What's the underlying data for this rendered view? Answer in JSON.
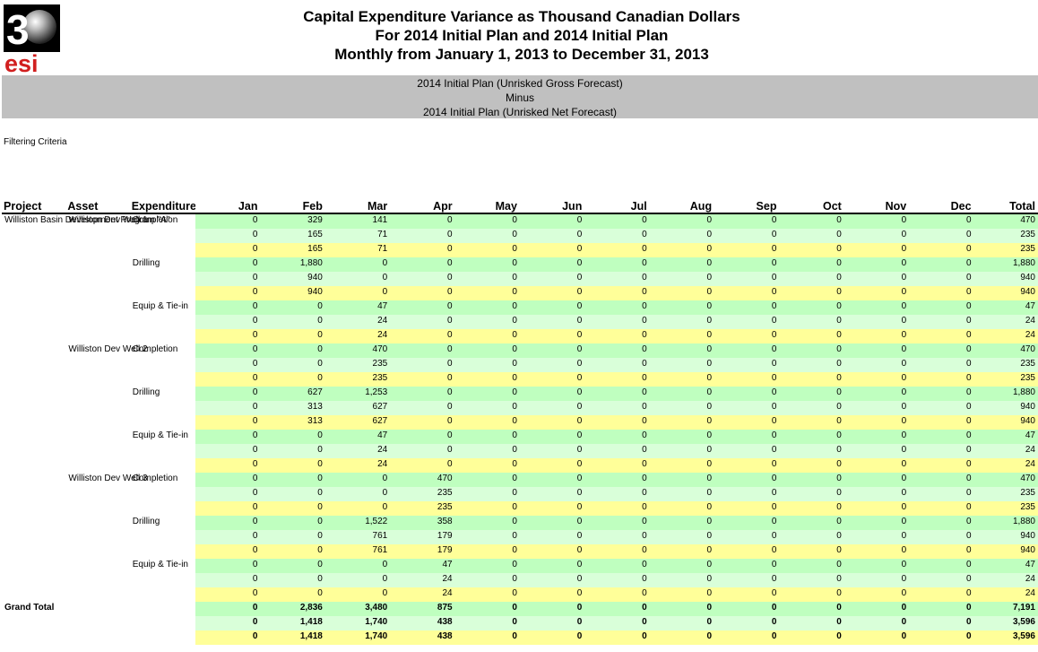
{
  "report": {
    "title_line1": "Capital Expenditure Variance as Thousand Canadian Dollars",
    "title_line2": "For 2014 Initial Plan and 2014 Initial Plan",
    "title_line3": "Monthly from January 1, 2013 to December 31, 2013",
    "banner_line1": "2014 Initial Plan (Unrisked Gross Forecast)",
    "banner_line2": "Minus",
    "banner_line3": "2014 Initial Plan (Unrisked Net Forecast)",
    "filter_label": "Filtering Criteria",
    "logo_text_top": "3",
    "logo_text_bottom": "esi"
  },
  "columns": [
    "Project",
    "Asset",
    "Expenditure",
    "Jan",
    "Feb",
    "Mar",
    "Apr",
    "May",
    "Jun",
    "Jul",
    "Aug",
    "Sep",
    "Oct",
    "Nov",
    "Dec",
    "Total"
  ],
  "rows": [
    {
      "project": "Williston Basin Development Program \"A\"",
      "asset": "Williston Dev Well 1",
      "exp": "Completion",
      "v": [
        "0",
        "329",
        "141",
        "0",
        "0",
        "0",
        "0",
        "0",
        "0",
        "0",
        "0",
        "0",
        "470"
      ]
    },
    {
      "v": [
        "0",
        "165",
        "71",
        "0",
        "0",
        "0",
        "0",
        "0",
        "0",
        "0",
        "0",
        "0",
        "235"
      ]
    },
    {
      "v": [
        "0",
        "165",
        "71",
        "0",
        "0",
        "0",
        "0",
        "0",
        "0",
        "0",
        "0",
        "0",
        "235"
      ]
    },
    {
      "exp": "Drilling",
      "v": [
        "0",
        "1,880",
        "0",
        "0",
        "0",
        "0",
        "0",
        "0",
        "0",
        "0",
        "0",
        "0",
        "1,880"
      ]
    },
    {
      "v": [
        "0",
        "940",
        "0",
        "0",
        "0",
        "0",
        "0",
        "0",
        "0",
        "0",
        "0",
        "0",
        "940"
      ]
    },
    {
      "v": [
        "0",
        "940",
        "0",
        "0",
        "0",
        "0",
        "0",
        "0",
        "0",
        "0",
        "0",
        "0",
        "940"
      ]
    },
    {
      "exp": "Equip & Tie-in",
      "v": [
        "0",
        "0",
        "47",
        "0",
        "0",
        "0",
        "0",
        "0",
        "0",
        "0",
        "0",
        "0",
        "47"
      ]
    },
    {
      "v": [
        "0",
        "0",
        "24",
        "0",
        "0",
        "0",
        "0",
        "0",
        "0",
        "0",
        "0",
        "0",
        "24"
      ]
    },
    {
      "v": [
        "0",
        "0",
        "24",
        "0",
        "0",
        "0",
        "0",
        "0",
        "0",
        "0",
        "0",
        "0",
        "24"
      ]
    },
    {
      "asset": "Williston Dev Well 2",
      "exp": "Completion",
      "v": [
        "0",
        "0",
        "470",
        "0",
        "0",
        "0",
        "0",
        "0",
        "0",
        "0",
        "0",
        "0",
        "470"
      ]
    },
    {
      "v": [
        "0",
        "0",
        "235",
        "0",
        "0",
        "0",
        "0",
        "0",
        "0",
        "0",
        "0",
        "0",
        "235"
      ]
    },
    {
      "v": [
        "0",
        "0",
        "235",
        "0",
        "0",
        "0",
        "0",
        "0",
        "0",
        "0",
        "0",
        "0",
        "235"
      ]
    },
    {
      "exp": "Drilling",
      "v": [
        "0",
        "627",
        "1,253",
        "0",
        "0",
        "0",
        "0",
        "0",
        "0",
        "0",
        "0",
        "0",
        "1,880"
      ]
    },
    {
      "v": [
        "0",
        "313",
        "627",
        "0",
        "0",
        "0",
        "0",
        "0",
        "0",
        "0",
        "0",
        "0",
        "940"
      ]
    },
    {
      "v": [
        "0",
        "313",
        "627",
        "0",
        "0",
        "0",
        "0",
        "0",
        "0",
        "0",
        "0",
        "0",
        "940"
      ]
    },
    {
      "exp": "Equip & Tie-in",
      "v": [
        "0",
        "0",
        "47",
        "0",
        "0",
        "0",
        "0",
        "0",
        "0",
        "0",
        "0",
        "0",
        "47"
      ]
    },
    {
      "v": [
        "0",
        "0",
        "24",
        "0",
        "0",
        "0",
        "0",
        "0",
        "0",
        "0",
        "0",
        "0",
        "24"
      ]
    },
    {
      "v": [
        "0",
        "0",
        "24",
        "0",
        "0",
        "0",
        "0",
        "0",
        "0",
        "0",
        "0",
        "0",
        "24"
      ]
    },
    {
      "asset": "Williston Dev Well 3",
      "exp": "Completion",
      "v": [
        "0",
        "0",
        "0",
        "470",
        "0",
        "0",
        "0",
        "0",
        "0",
        "0",
        "0",
        "0",
        "470"
      ]
    },
    {
      "v": [
        "0",
        "0",
        "0",
        "235",
        "0",
        "0",
        "0",
        "0",
        "0",
        "0",
        "0",
        "0",
        "235"
      ]
    },
    {
      "v": [
        "0",
        "0",
        "0",
        "235",
        "0",
        "0",
        "0",
        "0",
        "0",
        "0",
        "0",
        "0",
        "235"
      ]
    },
    {
      "exp": "Drilling",
      "v": [
        "0",
        "0",
        "1,522",
        "358",
        "0",
        "0",
        "0",
        "0",
        "0",
        "0",
        "0",
        "0",
        "1,880"
      ]
    },
    {
      "v": [
        "0",
        "0",
        "761",
        "179",
        "0",
        "0",
        "0",
        "0",
        "0",
        "0",
        "0",
        "0",
        "940"
      ]
    },
    {
      "v": [
        "0",
        "0",
        "761",
        "179",
        "0",
        "0",
        "0",
        "0",
        "0",
        "0",
        "0",
        "0",
        "940"
      ]
    },
    {
      "exp": "Equip & Tie-in",
      "v": [
        "0",
        "0",
        "0",
        "47",
        "0",
        "0",
        "0",
        "0",
        "0",
        "0",
        "0",
        "0",
        "47"
      ]
    },
    {
      "v": [
        "0",
        "0",
        "0",
        "24",
        "0",
        "0",
        "0",
        "0",
        "0",
        "0",
        "0",
        "0",
        "24"
      ]
    },
    {
      "v": [
        "0",
        "0",
        "0",
        "24",
        "0",
        "0",
        "0",
        "0",
        "0",
        "0",
        "0",
        "0",
        "24"
      ]
    },
    {
      "project": "Grand Total",
      "grand": true,
      "v": [
        "0",
        "2,836",
        "3,480",
        "875",
        "0",
        "0",
        "0",
        "0",
        "0",
        "0",
        "0",
        "0",
        "7,191"
      ]
    },
    {
      "grand": true,
      "v": [
        "0",
        "1,418",
        "1,740",
        "438",
        "0",
        "0",
        "0",
        "0",
        "0",
        "0",
        "0",
        "0",
        "3,596"
      ]
    },
    {
      "grand": true,
      "v": [
        "0",
        "1,418",
        "1,740",
        "438",
        "0",
        "0",
        "0",
        "0",
        "0",
        "0",
        "0",
        "0",
        "3,596"
      ]
    }
  ],
  "colors": {
    "band_1": "#bfffbf",
    "band_2": "#d9ffd9",
    "band_3": "#ffff99",
    "banner": "#c0c0c0"
  }
}
